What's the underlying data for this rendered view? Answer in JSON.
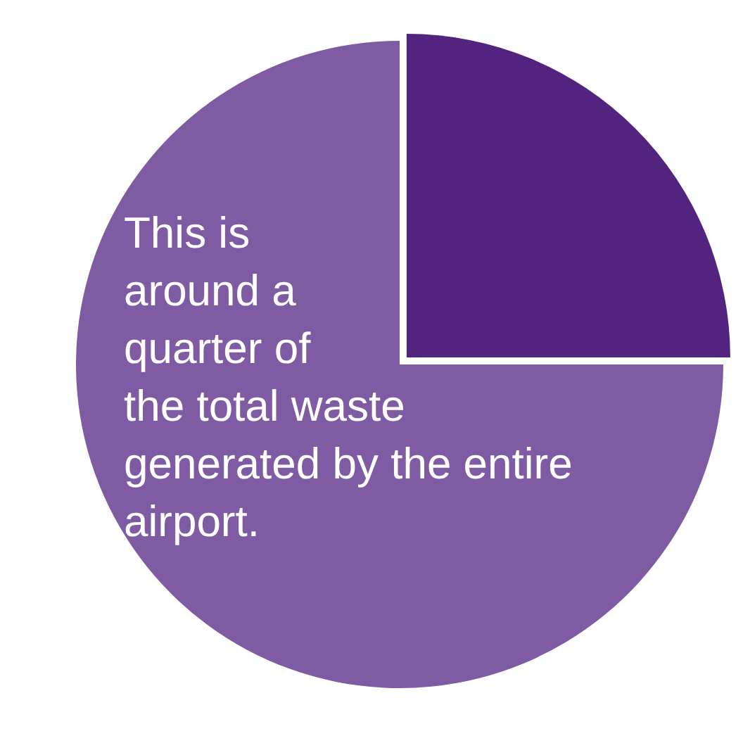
{
  "chart_data": {
    "type": "pie",
    "categories": [
      null,
      null
    ],
    "values": [
      25,
      75
    ],
    "colors": [
      "#52237f",
      "#7e5ba3"
    ],
    "legend": false,
    "annotations": [
      "This is around a quarter of the total waste generated by the entire airport."
    ]
  }
}
